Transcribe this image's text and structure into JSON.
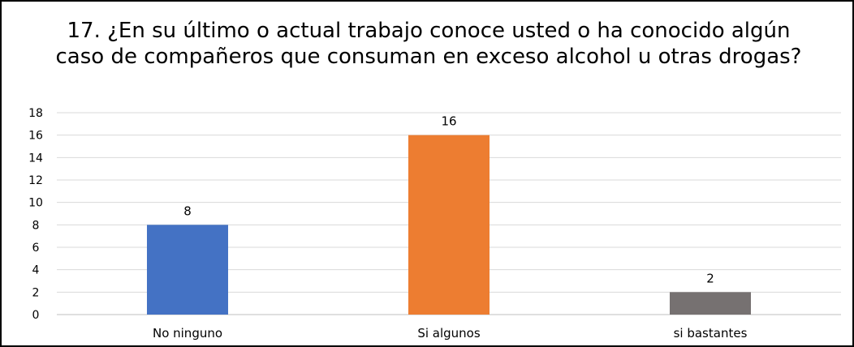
{
  "chart_data": {
    "type": "bar",
    "title": "17. ¿En su último o actual trabajo conoce usted o ha conocido algún caso de compañeros que consuman en exceso alcohol u otras drogas?",
    "categories": [
      "No ninguno",
      "Si algunos",
      "si bastantes"
    ],
    "values": [
      8,
      16,
      2
    ],
    "colors": [
      "#4472C4",
      "#ED7D31",
      "#767171"
    ],
    "ylim": [
      0,
      18
    ],
    "ytick_step": 2,
    "yticks": [
      "0",
      "2",
      "4",
      "6",
      "8",
      "10",
      "12",
      "14",
      "16",
      "18"
    ],
    "grid": true,
    "legend": "none",
    "xlabel": "",
    "ylabel": ""
  }
}
